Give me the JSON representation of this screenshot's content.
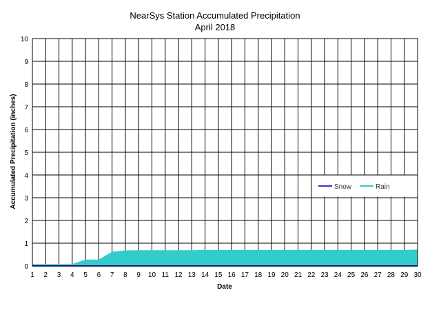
{
  "chart_data": {
    "type": "area",
    "title": "NearSys Station Accumulated Precipitation",
    "subtitle": "April 2018",
    "xlabel": "Date",
    "ylabel": "Accumulated Precipitation (inches)",
    "x": [
      1,
      2,
      3,
      4,
      5,
      6,
      7,
      8,
      9,
      10,
      11,
      12,
      13,
      14,
      15,
      16,
      17,
      18,
      19,
      20,
      21,
      22,
      23,
      24,
      25,
      26,
      27,
      28,
      29,
      30
    ],
    "xlim": [
      1,
      30
    ],
    "ylim": [
      0,
      10
    ],
    "yticks": [
      "0",
      "1",
      "2",
      "3",
      "4",
      "5",
      "6",
      "7",
      "8",
      "9",
      "10"
    ],
    "xticks": [
      "1",
      "2",
      "3",
      "4",
      "5",
      "6",
      "7",
      "8",
      "9",
      "10",
      "11",
      "12",
      "13",
      "14",
      "15",
      "16",
      "17",
      "18",
      "19",
      "20",
      "21",
      "22",
      "23",
      "24",
      "25",
      "26",
      "27",
      "28",
      "29",
      "30"
    ],
    "grid": true,
    "legend_position": "right",
    "series": [
      {
        "name": "Snow",
        "color": "#3333cc",
        "values": [
          0,
          0,
          0,
          0,
          0,
          0,
          0,
          0,
          0,
          0,
          0,
          0,
          0,
          0,
          0,
          0,
          0,
          0,
          0,
          0,
          0,
          0,
          0,
          0,
          0,
          0,
          0,
          0,
          0,
          0
        ]
      },
      {
        "name": "Rain",
        "color": "#33cccc",
        "values": [
          0.08,
          0.08,
          0.08,
          0.08,
          0.28,
          0.28,
          0.62,
          0.68,
          0.69,
          0.69,
          0.69,
          0.69,
          0.69,
          0.7,
          0.7,
          0.7,
          0.7,
          0.7,
          0.7,
          0.7,
          0.7,
          0.7,
          0.7,
          0.7,
          0.7,
          0.7,
          0.7,
          0.7,
          0.7,
          0.72
        ]
      }
    ]
  }
}
